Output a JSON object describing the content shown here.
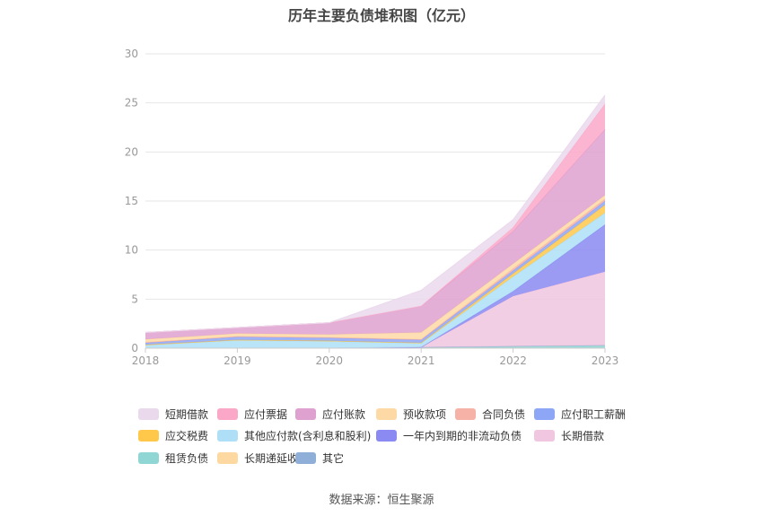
{
  "chart_data": {
    "type": "area",
    "stacked": true,
    "title": "历年主要负债堆积图（亿元）",
    "xlabel": "",
    "ylabel": "",
    "categories": [
      "2018",
      "2019",
      "2020",
      "2021",
      "2022",
      "2023"
    ],
    "ylim": [
      0,
      30
    ],
    "yticks": [
      0,
      5,
      10,
      15,
      20,
      25,
      30
    ],
    "grid": true,
    "legend_position": "bottom",
    "series": [
      {
        "name": "租赁负债",
        "color": "#8fd6d4",
        "values": [
          0,
          0,
          0,
          0.1,
          0.2,
          0.3
        ]
      },
      {
        "name": "长期递延收益",
        "color": "#fdd8a0",
        "values": [
          0,
          0,
          0,
          0,
          0,
          0
        ]
      },
      {
        "name": "其它",
        "color": "#90afd8",
        "values": [
          0,
          0,
          0,
          0,
          0,
          0
        ]
      },
      {
        "name": "长期借款",
        "color": "#f0c6e0",
        "values": [
          0,
          0,
          0,
          0,
          5.1,
          7.5
        ]
      },
      {
        "name": "一年内到期的非流动负债",
        "color": "#8a8af2",
        "values": [
          0,
          0,
          0,
          0,
          0.5,
          4.8
        ]
      },
      {
        "name": "其他应付款(含利息和股利)",
        "color": "#aedff6",
        "values": [
          0.3,
          0.8,
          0.7,
          0.4,
          1.5,
          1.2
        ]
      },
      {
        "name": "应交税费",
        "color": "#ffc84a",
        "values": [
          0.05,
          0.05,
          0.05,
          0.05,
          0.3,
          0.8
        ]
      },
      {
        "name": "应付职工薪酬",
        "color": "#8ea6f6",
        "values": [
          0.2,
          0.3,
          0.3,
          0.3,
          0.3,
          0.4
        ]
      },
      {
        "name": "合同负债",
        "color": "#f7b2a8",
        "values": [
          0.05,
          0.05,
          0.05,
          0.05,
          0.2,
          0.2
        ]
      },
      {
        "name": "预收款项",
        "color": "#fdd9a6",
        "values": [
          0.3,
          0.3,
          0.3,
          0.7,
          0.5,
          0.4
        ]
      },
      {
        "name": "应付账款",
        "color": "#dfa1cf",
        "values": [
          0.7,
          0.6,
          1.2,
          2.7,
          3.3,
          6.7
        ]
      },
      {
        "name": "应付票据",
        "color": "#fba8c8",
        "values": [
          0,
          0,
          0,
          0,
          0.4,
          2.6
        ]
      },
      {
        "name": "短期借款",
        "color": "#ead9ec",
        "values": [
          0,
          0,
          0,
          1.6,
          0.8,
          0.9
        ]
      }
    ],
    "legend_rows": [
      [
        "短期借款",
        "应付票据",
        "应付账款",
        "预收款项",
        "合同负债",
        "应付职工薪酬"
      ],
      [
        "应交税费",
        "其他应付款(含利息和股利)",
        "一年内到期的非流动负债",
        "长期借款"
      ],
      [
        "租赁负债",
        "长期递延收益",
        "其它"
      ]
    ]
  },
  "source_text": "数据来源：恒生聚源"
}
